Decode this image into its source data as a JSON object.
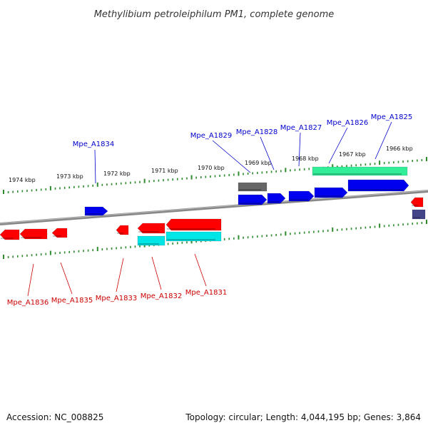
{
  "title": "Methylibium petroleiphilum PM1, complete genome",
  "footer": {
    "accession": "Accession: NC_008825",
    "summary": "Topology: circular; Length: 4,044,195 bp; Genes: 3,864"
  },
  "colors": {
    "backbone": "#777777",
    "tick": "#2e8b2e",
    "plus_label": "#0000cc",
    "minus_label": "#cc0000",
    "gene_plus": "#0000ee",
    "gene_minus": "#ff0000",
    "rna": "#00e5e5",
    "green_feature": "#33ee99",
    "gray_feature": "#666666",
    "slate_feature": "#444488"
  },
  "ticks": [
    {
      "label": "1974 kbp",
      "kbp": 1974
    },
    {
      "label": "1973 kbp",
      "kbp": 1973
    },
    {
      "label": "1972 kbp",
      "kbp": 1972
    },
    {
      "label": "1971 kbp",
      "kbp": 1971
    },
    {
      "label": "1970 kbp",
      "kbp": 1970
    },
    {
      "label": "1969 kbp",
      "kbp": 1969
    },
    {
      "label": "1968 kbp",
      "kbp": 1968
    },
    {
      "label": "1967 kbp",
      "kbp": 1967
    },
    {
      "label": "1966 kbp",
      "kbp": 1966
    }
  ],
  "plus_labels": [
    "Mpe_A1834",
    "Mpe_A1829",
    "Mpe_A1828",
    "Mpe_A1827",
    "Mpe_A1826",
    "Mpe_A1825"
  ],
  "minus_labels": [
    "Mpe_A1836",
    "Mpe_A1835",
    "Mpe_A1833",
    "Mpe_A1832",
    "Mpe_A1831"
  ]
}
